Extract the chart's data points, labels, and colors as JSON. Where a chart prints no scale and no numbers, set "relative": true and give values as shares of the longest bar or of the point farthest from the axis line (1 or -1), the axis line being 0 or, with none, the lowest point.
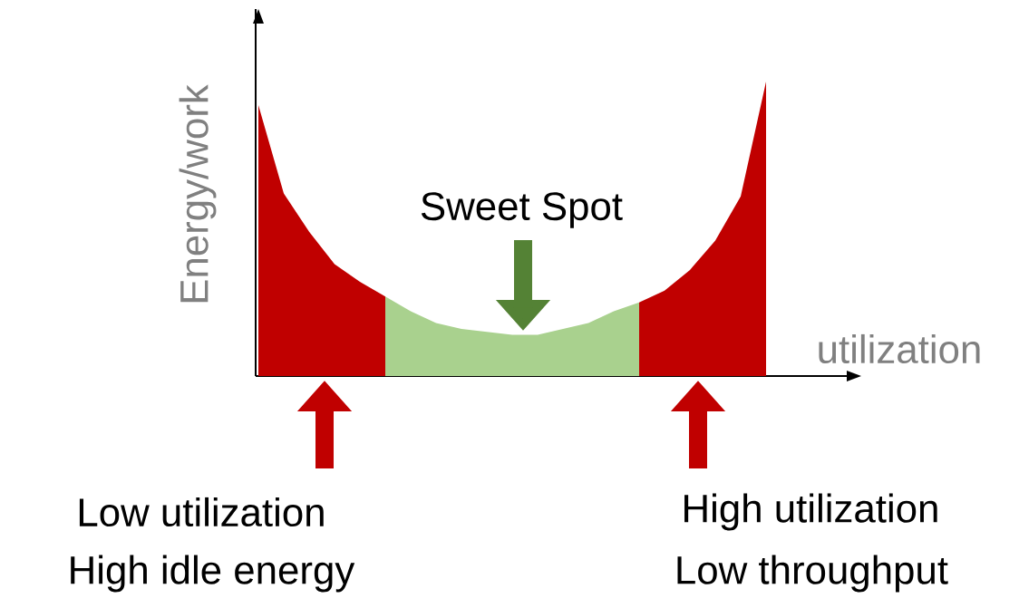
{
  "chart_data": {
    "type": "area",
    "relative": true,
    "xlabel": "utilization",
    "ylabel": "Energy/work",
    "categories": [
      null,
      null,
      null,
      null,
      null,
      null,
      null,
      null,
      null,
      null,
      null,
      null,
      null,
      null,
      null,
      null,
      null,
      null,
      null,
      null,
      null
    ],
    "series": [
      {
        "color": "#c00000",
        "values": [
          0.92,
          0.62,
          0.49,
          0.38,
          0.32,
          0.27,
          null,
          null,
          null,
          null,
          null,
          null,
          null,
          null,
          null,
          null,
          null,
          null,
          null,
          null,
          null
        ]
      },
      {
        "color": "#a9d18e",
        "values": [
          null,
          null,
          null,
          null,
          null,
          0.27,
          0.22,
          0.18,
          0.16,
          0.15,
          0.14,
          0.14,
          0.16,
          0.18,
          0.22,
          0.25,
          null,
          null,
          null,
          null,
          null
        ]
      },
      {
        "color": "#c00000",
        "values": [
          null,
          null,
          null,
          null,
          null,
          null,
          null,
          null,
          null,
          null,
          null,
          null,
          null,
          null,
          null,
          0.25,
          0.29,
          0.36,
          0.46,
          0.61,
          1.0
        ]
      }
    ],
    "annotations": [
      "Sweet Spot",
      "Low utilization",
      "High idle energy",
      "High utilization",
      "Low throughput"
    ]
  }
}
